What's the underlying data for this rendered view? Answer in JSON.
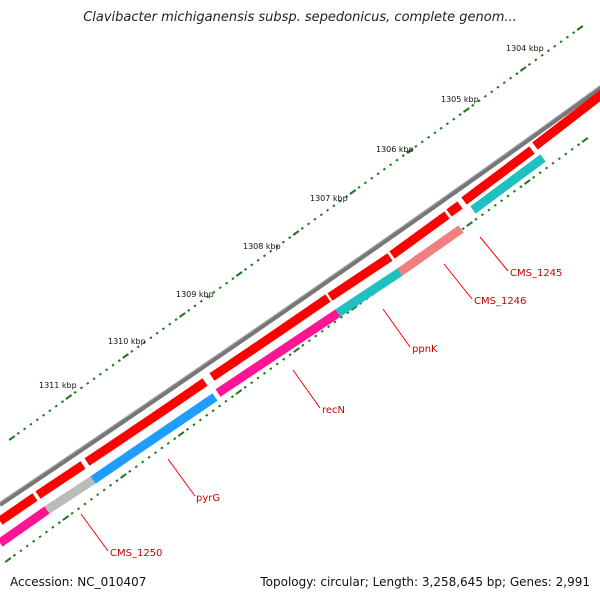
{
  "title": "Clavibacter michiganensis subsp. sepedonicus, complete genom...",
  "footer": {
    "accession": "Accession: NC_010407",
    "summary": "Topology: circular; Length: 3,258,645 bp; Genes: 2,991"
  },
  "colors": {
    "backbone": "#7a7a7a",
    "forward_gene": "#ff0000",
    "tick": "#1a7a1a",
    "label": "#cc0000",
    "callout": "#ff0000"
  },
  "scale_labels": [
    "1304 kbp",
    "1305 kbp",
    "1306 kbp",
    "1307 kbp",
    "1308 kbp",
    "1309 kbp",
    "1310 kbp",
    "1311 kbp"
  ],
  "gene_labels": [
    {
      "name": "CMS_1245",
      "color": "#ff9999"
    },
    {
      "name": "CMS_1246",
      "color": "#f08080"
    },
    {
      "name": "ppnK",
      "color": "#20c0c0"
    },
    {
      "name": "recN",
      "color": "#ff1493"
    },
    {
      "name": "pyrG",
      "color": "#1e9fff"
    },
    {
      "name": "CMS_1250",
      "color": "#aaaaaa"
    }
  ]
}
